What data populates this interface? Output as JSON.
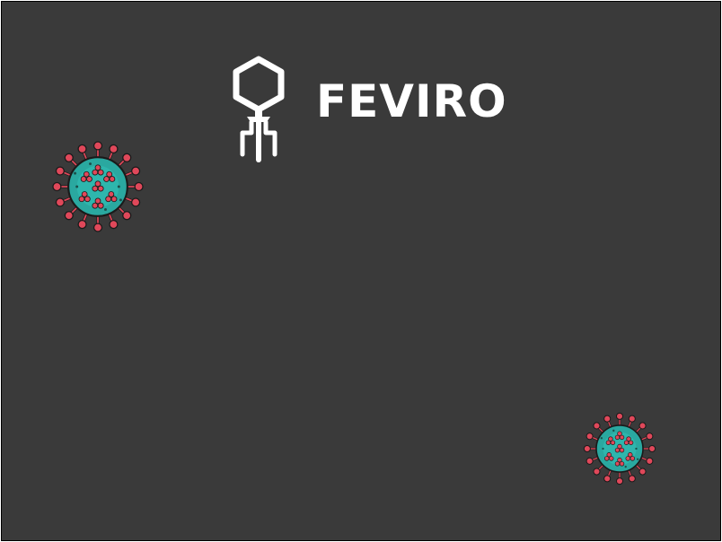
{
  "game": {
    "title": "FEVIRO"
  },
  "icons": {
    "logo": "bacteriophage-icon",
    "enemy": "coronavirus-icon"
  },
  "colors": {
    "background": "#3a3a3a",
    "logo": "#ffffff",
    "virus_body": "#2aa8a0",
    "virus_spike": "#e0485a",
    "outline": "#1a1a1a"
  }
}
